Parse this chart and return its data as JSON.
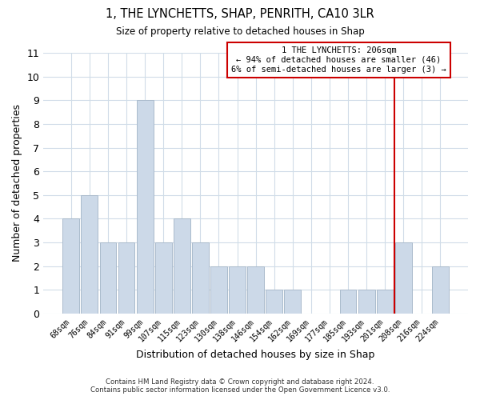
{
  "title": "1, THE LYNCHETTS, SHAP, PENRITH, CA10 3LR",
  "subtitle": "Size of property relative to detached houses in Shap",
  "xlabel": "Distribution of detached houses by size in Shap",
  "ylabel": "Number of detached properties",
  "footer_line1": "Contains HM Land Registry data © Crown copyright and database right 2024.",
  "footer_line2": "Contains public sector information licensed under the Open Government Licence v3.0.",
  "categories": [
    "68sqm",
    "76sqm",
    "84sqm",
    "91sqm",
    "99sqm",
    "107sqm",
    "115sqm",
    "123sqm",
    "130sqm",
    "138sqm",
    "146sqm",
    "154sqm",
    "162sqm",
    "169sqm",
    "177sqm",
    "185sqm",
    "193sqm",
    "201sqm",
    "208sqm",
    "216sqm",
    "224sqm"
  ],
  "values": [
    4,
    5,
    3,
    3,
    9,
    3,
    4,
    3,
    2,
    2,
    2,
    1,
    1,
    0,
    0,
    1,
    1,
    1,
    3,
    0,
    2
  ],
  "bar_color": "#ccd9e8",
  "bar_edge_color": "#aabbcc",
  "grid_color": "#d0dce8",
  "vline_color": "#cc0000",
  "annotation_text": "1 THE LYNCHETTS: 206sqm\n← 94% of detached houses are smaller (46)\n6% of semi-detached houses are larger (3) →",
  "annotation_box_color": "#cc0000",
  "ylim": [
    0,
    11
  ],
  "yticks": [
    0,
    1,
    2,
    3,
    4,
    5,
    6,
    7,
    8,
    9,
    10,
    11
  ],
  "vline_index": 18
}
